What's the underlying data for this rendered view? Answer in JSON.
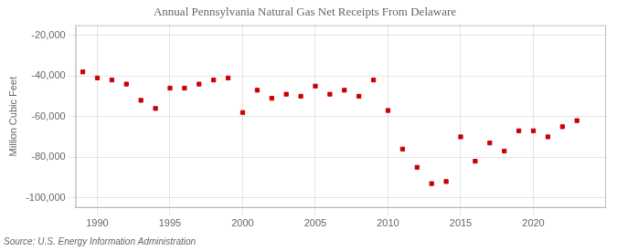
{
  "chart_data": {
    "type": "scatter",
    "title": "Annual Pennsylvania Natural Gas Net Receipts From Delaware",
    "y_label": "Million Cubic Feet",
    "annotation": "Source: U.S. Energy Information Administration",
    "x": [
      1989,
      1990,
      1991,
      1992,
      1993,
      1994,
      1995,
      1996,
      1997,
      1998,
      1999,
      2000,
      2001,
      2002,
      2003,
      2004,
      2005,
      2006,
      2007,
      2008,
      2009,
      2010,
      2011,
      2012,
      2013,
      2014,
      2015,
      2016,
      2017,
      2018,
      2019,
      2020,
      2021,
      2022,
      2023
    ],
    "values": [
      -38000,
      -41000,
      -42000,
      -44000,
      -52000,
      -56000,
      -46000,
      -46000,
      -44000,
      -42000,
      -41000,
      -58000,
      -47000,
      -51000,
      -49000,
      -50000,
      -45000,
      -49000,
      -47000,
      -50000,
      -42000,
      -57000,
      -76000,
      -85000,
      -93000,
      -92000,
      -70000,
      -82000,
      -73000,
      -77000,
      -67000,
      -67000,
      -70000,
      -65000,
      -62000
    ],
    "color": "#cc0000",
    "marker": "square",
    "xlim": [
      1988.5,
      2025
    ],
    "xticks": [
      1990,
      1995,
      2000,
      2005,
      2010,
      2015,
      2020
    ],
    "ylim": [
      -105000,
      -15000
    ],
    "yticks": [
      {
        "value": -100000,
        "label": "-100,000"
      },
      {
        "value": -80000,
        "label": "-80,000"
      },
      {
        "value": -60000,
        "label": "-60,000"
      },
      {
        "value": -40000,
        "label": "-40,000"
      },
      {
        "value": -20000,
        "label": "-20,000"
      }
    ],
    "grid": true
  }
}
